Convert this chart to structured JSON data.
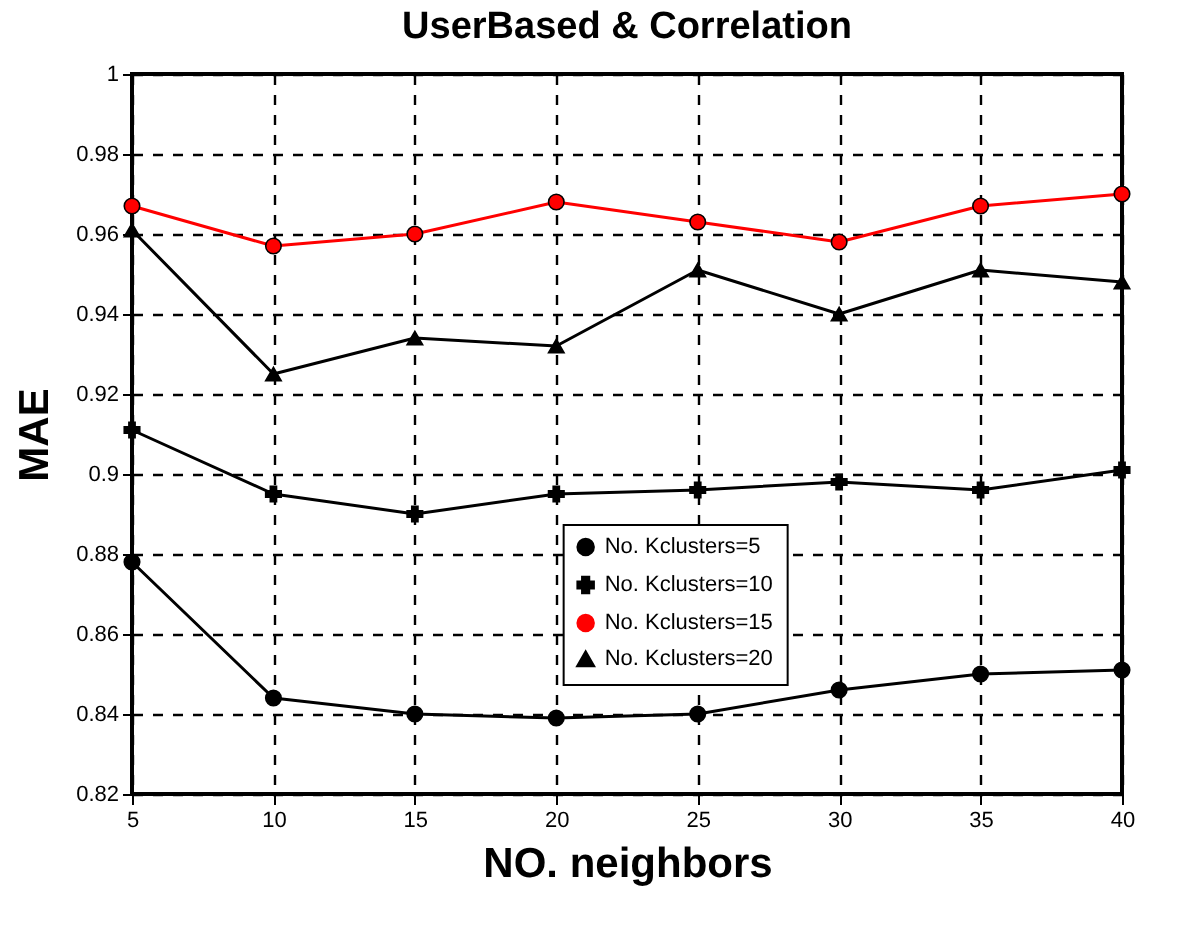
{
  "chart_data": {
    "type": "line",
    "title": "UserBased & Correlation",
    "xlabel": "NO. neighbors",
    "ylabel": "MAE",
    "x": [
      5,
      10,
      15,
      20,
      25,
      30,
      35,
      40
    ],
    "series": [
      {
        "name": "No. Kclusters=5",
        "color": "#000000",
        "marker": "circle",
        "values": [
          0.878,
          0.844,
          0.84,
          0.839,
          0.84,
          0.846,
          0.85,
          0.851
        ]
      },
      {
        "name": "No. Kclusters=10",
        "color": "#000000",
        "marker": "cross",
        "values": [
          0.911,
          0.895,
          0.89,
          0.895,
          0.896,
          0.898,
          0.896,
          0.901
        ]
      },
      {
        "name": "No. Kclusters=15",
        "color": "#ff0000",
        "marker": "circle",
        "values": [
          0.967,
          0.957,
          0.96,
          0.968,
          0.963,
          0.958,
          0.967,
          0.97
        ]
      },
      {
        "name": "No. Kclusters=20",
        "color": "#000000",
        "marker": "triangle",
        "values": [
          0.961,
          0.925,
          0.934,
          0.932,
          0.951,
          0.94,
          0.951,
          0.948
        ]
      }
    ],
    "xlim": [
      5,
      40
    ],
    "xticks": [
      5,
      10,
      15,
      20,
      25,
      30,
      35,
      40
    ],
    "ylim": [
      0.82,
      1
    ],
    "yticks": [
      0.82,
      0.84,
      0.86,
      0.88,
      0.9,
      0.92,
      0.94,
      0.96,
      0.98,
      1
    ],
    "grid": true,
    "legend": "bottom right",
    "line_style": "solid"
  }
}
